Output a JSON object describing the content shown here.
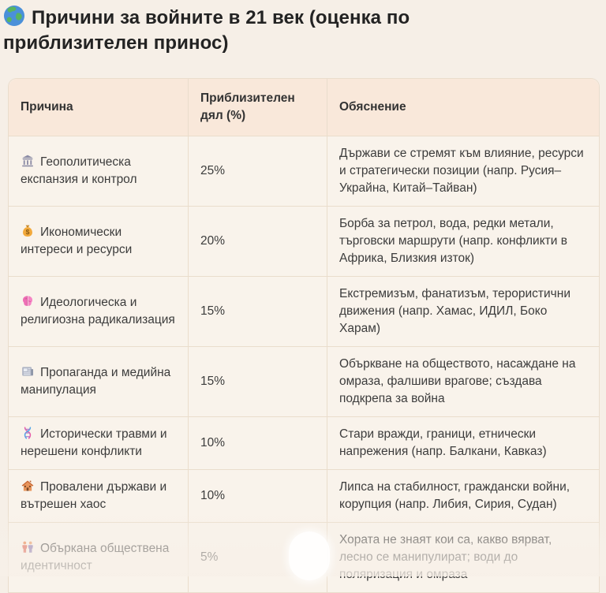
{
  "title": {
    "icon": "globe",
    "text": "Причини за войните в 21 век (оценка по приблизителен принос)"
  },
  "table": {
    "headers": [
      {
        "label": "Причина"
      },
      {
        "label": "Приблизителен дял (%)"
      },
      {
        "label": "Обяснение"
      }
    ],
    "rows": [
      {
        "icon": "classical-building",
        "cause": "Геополитическа експанзия и контрол",
        "share": "25%",
        "explanation": "Държави се стремят към влияние, ресурси и стратегически позиции (напр. Русия–Украйна, Китай–Тайван)"
      },
      {
        "icon": "money-bag",
        "cause": "Икономически интереси и ресурси",
        "share": "20%",
        "explanation": "Борба за петрол, вода, редки метали, търговски маршрути (напр. конфликти в Африка, Близкия изток)"
      },
      {
        "icon": "brain",
        "cause": "Идеологическа и религиозна радикализация",
        "share": "15%",
        "explanation": "Екстремизъм, фанатизъм, терористични движения (напр. Хамас, ИДИЛ, Боко Харам)"
      },
      {
        "icon": "newspaper",
        "cause": "Пропаганда и медийна манипулация",
        "share": "15%",
        "explanation": "Объркване на обществото, насаждане на омраза, фалшиви врагове; създава подкрепа за война"
      },
      {
        "icon": "dna",
        "cause": "Исторически травми и нерешени конфликти",
        "share": "10%",
        "explanation": "Стари вражди, граници, етнически напрежения (напр. Балкани, Кавказ)"
      },
      {
        "icon": "derelict-house",
        "cause": "Провалени държави и вътрешен хаос",
        "share": "10%",
        "explanation": "Липса на стабилност, граждански войни, корупция (напр. Либия, Сирия, Судан)"
      },
      {
        "icon": "people",
        "cause": "Объркана обществена идентичност",
        "share": "5%",
        "explanation": "Хората не знаят кои са, какво вярват, лесно се манипулират; води до поляризация и омраза"
      }
    ]
  },
  "colors": {
    "page_bg": "#f6efe7",
    "table_bg": "#f9f3eb",
    "header_bg": "#f9e8da",
    "border": "#eaddcc",
    "text": "#3c3c3c",
    "title_text": "#232323"
  }
}
